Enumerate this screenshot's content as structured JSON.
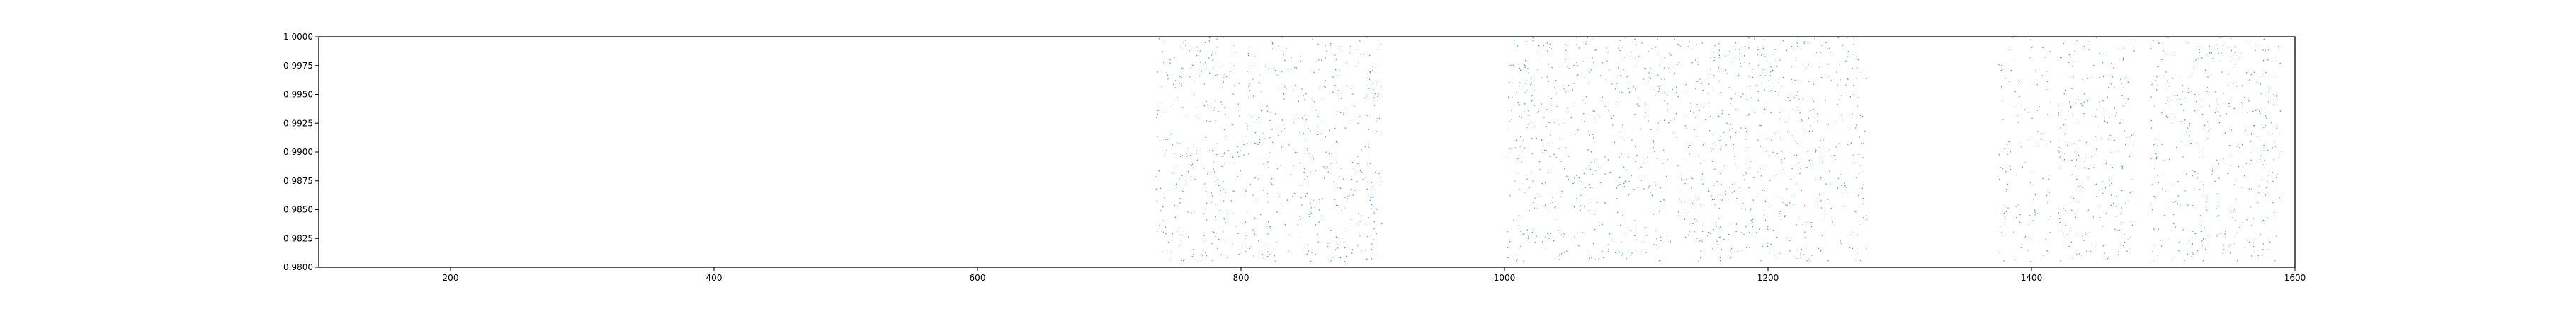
{
  "chart_data": {
    "type": "scatter",
    "title": "",
    "xlabel": "",
    "ylabel": "",
    "xlim": [
      100,
      1600
    ],
    "ylim": [
      0.98,
      1.0
    ],
    "grid": false,
    "legend": "none",
    "x_ticks": [
      {
        "value": 200,
        "label": "200"
      },
      {
        "value": 400,
        "label": "400"
      },
      {
        "value": 600,
        "label": "600"
      },
      {
        "value": 800,
        "label": "800"
      },
      {
        "value": 1000,
        "label": "1000"
      },
      {
        "value": 1200,
        "label": "1200"
      },
      {
        "value": 1400,
        "label": "1400"
      },
      {
        "value": 1600,
        "label": "1600"
      }
    ],
    "y_ticks": [
      {
        "value": 0.98,
        "label": "0.9800"
      },
      {
        "value": 0.9825,
        "label": "0.9825"
      },
      {
        "value": 0.985,
        "label": "0.9850"
      },
      {
        "value": 0.9875,
        "label": "0.9875"
      },
      {
        "value": 0.99,
        "label": "0.9900"
      },
      {
        "value": 0.9925,
        "label": "0.9925"
      },
      {
        "value": 0.995,
        "label": "0.9950"
      },
      {
        "value": 0.9975,
        "label": "0.9975"
      },
      {
        "value": 1.0,
        "label": "1.0000"
      }
    ],
    "series": [
      {
        "color": "#1f77b4",
        "marker": "point",
        "clusters": [
          {
            "x_range": [
              735,
              800
            ],
            "y_range": [
              0.9805,
              1.0
            ],
            "density": "high"
          },
          {
            "x_range": [
              802,
              907
            ],
            "y_range": [
              0.9805,
              1.0
            ],
            "density": "high"
          },
          {
            "x_range": [
              1002,
              1120
            ],
            "y_range": [
              0.9805,
              1.0
            ],
            "density": "high"
          },
          {
            "x_range": [
              1120,
              1165
            ],
            "y_range": [
              0.9805,
              1.0
            ],
            "density": "high"
          },
          {
            "x_range": [
              1165,
              1275
            ],
            "y_range": [
              0.9805,
              1.0
            ],
            "density": "high"
          },
          {
            "x_range": [
              1375,
              1415
            ],
            "y_range": [
              0.9805,
              1.0
            ],
            "density": "medium"
          },
          {
            "x_range": [
              1420,
              1478
            ],
            "y_range": [
              0.9805,
              1.0
            ],
            "density": "high"
          },
          {
            "x_range": [
              1490,
              1590
            ],
            "y_range": [
              0.9805,
              1.0
            ],
            "density": "high"
          }
        ]
      }
    ]
  }
}
